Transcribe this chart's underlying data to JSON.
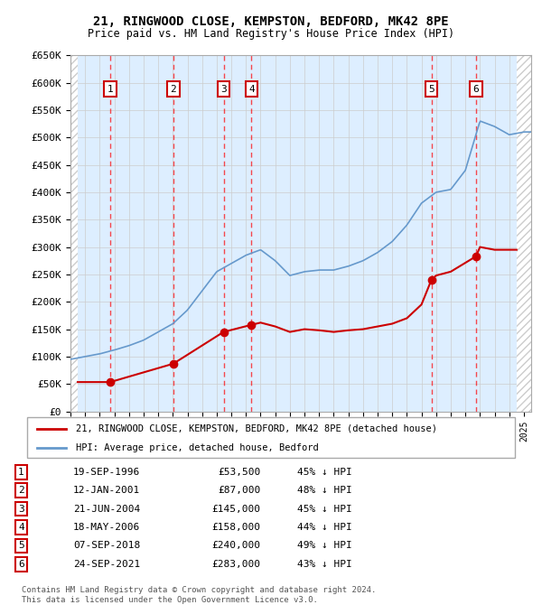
{
  "title": "21, RINGWOOD CLOSE, KEMPSTON, BEDFORD, MK42 8PE",
  "subtitle": "Price paid vs. HM Land Registry's House Price Index (HPI)",
  "transactions": [
    {
      "num": 1,
      "date": "19-SEP-1996",
      "date_val": 1996.72,
      "price": 53500,
      "hpi_pct": "45% ↓ HPI"
    },
    {
      "num": 2,
      "date": "12-JAN-2001",
      "date_val": 2001.03,
      "price": 87000,
      "hpi_pct": "48% ↓ HPI"
    },
    {
      "num": 3,
      "date": "21-JUN-2004",
      "date_val": 2004.47,
      "price": 145000,
      "hpi_pct": "45% ↓ HPI"
    },
    {
      "num": 4,
      "date": "18-MAY-2006",
      "date_val": 2006.38,
      "price": 158000,
      "hpi_pct": "44% ↓ HPI"
    },
    {
      "num": 5,
      "date": "07-SEP-2018",
      "date_val": 2018.68,
      "price": 240000,
      "hpi_pct": "49% ↓ HPI"
    },
    {
      "num": 6,
      "date": "24-SEP-2021",
      "date_val": 2021.73,
      "price": 283000,
      "hpi_pct": "43% ↓ HPI"
    }
  ],
  "ylim": [
    0,
    650000
  ],
  "xlim": [
    1994.0,
    2025.5
  ],
  "price_line_color": "#cc0000",
  "hpi_line_color": "#6699cc",
  "hpi_fill_color": "#ddeeff",
  "transaction_box_color": "#cc0000",
  "background_color": "#ffffff",
  "hatch_color": "#cccccc",
  "grid_color": "#cccccc",
  "footer": "Contains HM Land Registry data © Crown copyright and database right 2024.\nThis data is licensed under the Open Government Licence v3.0.",
  "legend_label_price": "21, RINGWOOD CLOSE, KEMPSTON, BEDFORD, MK42 8PE (detached house)",
  "legend_label_hpi": "HPI: Average price, detached house, Bedford"
}
